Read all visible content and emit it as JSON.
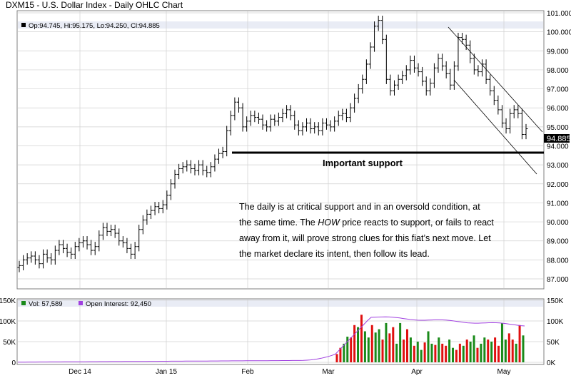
{
  "title": "DXM15 - U.S. Dollar Index - Daily OHLC Chart",
  "ohlc_legend": "Op:94.745, Hi:95.175, Lo:94.250, Cl:94.885",
  "last_price_label": "94.885",
  "annotations": {
    "support_label": "Important support",
    "commentary_lines": [
      "The daily is at critical support and in an oversold condition, at",
      "the same time.  The HOW price reacts to support, or fails to react",
      "away from it, will prove strong clues for this fiat’s next move.  Let",
      "the market declare its intent, then follow its lead."
    ],
    "emphasis_word": "HOW"
  },
  "volume_legend": {
    "vol_label": "Vol: 57,589",
    "oi_label": "Open Interest: 92,450"
  },
  "colors": {
    "plot_bg": "#ffffff",
    "grid": "#c8c8c8",
    "header_bg": "#e9ecf5",
    "bar": "#000000",
    "vol_up": "#1a8a1a",
    "vol_down": "#e01010",
    "oi_line": "#a040e0"
  },
  "chart_data": {
    "type": "ohlc",
    "price_axis": {
      "ylim": [
        87,
        101
      ],
      "ticks": [
        "87.000",
        "88.000",
        "89.000",
        "90.000",
        "91.000",
        "92.000",
        "93.000",
        "94.000",
        "95.000",
        "96.000",
        "97.000",
        "98.000",
        "99.000",
        "100.000",
        "101.000"
      ]
    },
    "x_labels": [
      "Dec 14",
      "Jan 15",
      "Feb",
      "Mar",
      "Apr",
      "May"
    ],
    "support_level": 94.1,
    "series_close": [
      87.7,
      88.0,
      88.1,
      88.2,
      88.0,
      87.8,
      88.3,
      88.1,
      88.0,
      88.5,
      88.8,
      88.6,
      88.4,
      88.3,
      88.7,
      88.9,
      89.0,
      88.8,
      88.5,
      88.7,
      89.3,
      89.7,
      89.5,
      89.6,
      89.4,
      89.0,
      88.9,
      88.6,
      88.3,
      88.7,
      89.6,
      90.1,
      90.4,
      90.6,
      90.8,
      90.7,
      90.9,
      91.4,
      92.0,
      92.5,
      92.8,
      92.9,
      93.0,
      92.8,
      92.7,
      93.0,
      92.7,
      92.6,
      92.9,
      93.3,
      93.6,
      93.7,
      94.8,
      95.6,
      96.3,
      96.0,
      95.0,
      95.3,
      95.6,
      95.5,
      95.4,
      95.1,
      95.0,
      95.4,
      95.3,
      95.5,
      95.7,
      95.9,
      95.6,
      95.1,
      94.8,
      95.0,
      95.2,
      94.9,
      95.0,
      94.8,
      95.2,
      95.1,
      95.0,
      95.3,
      95.6,
      95.7,
      95.5,
      96.0,
      96.5,
      97.0,
      97.5,
      98.3,
      99.2,
      100.3,
      100.6,
      99.6,
      97.5,
      96.9,
      97.2,
      97.5,
      97.7,
      98.0,
      98.5,
      98.1,
      97.9,
      97.4,
      96.9,
      97.3,
      98.1,
      98.6,
      98.2,
      97.8,
      97.2,
      98.2,
      99.7,
      99.6,
      99.3,
      98.6,
      98.0,
      97.9,
      98.3,
      97.5,
      96.9,
      96.4,
      95.9,
      95.2,
      94.9,
      95.7,
      95.9,
      95.7,
      94.6,
      94.9
    ],
    "volume_axis": {
      "ticks": [
        "0",
        "50K",
        "100K",
        "150K"
      ]
    },
    "open_interest_axis": {
      "ticks": [
        "0K",
        "50K",
        "100K",
        "150K"
      ]
    },
    "volume_bars_count": 54
  }
}
